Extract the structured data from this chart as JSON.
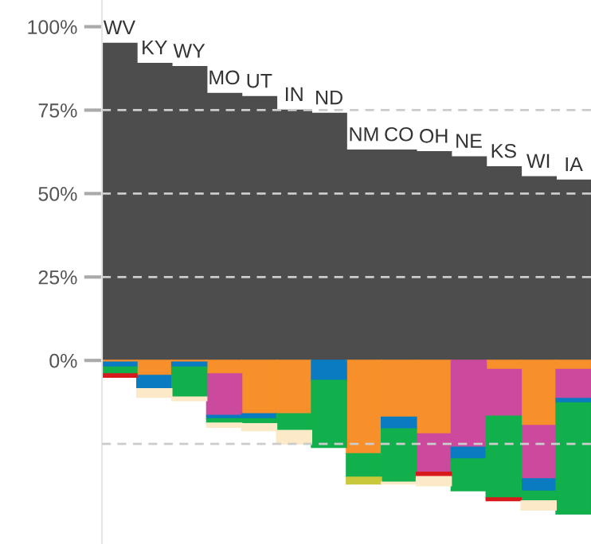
{
  "chart_data": {
    "type": "bar",
    "stacked": true,
    "categories": [
      "WV",
      "KY",
      "WY",
      "MO",
      "UT",
      "IN",
      "ND",
      "NM",
      "CO",
      "OH",
      "NE",
      "KS",
      "WI",
      "IA"
    ],
    "series": [
      {
        "color": "#4d4d4d",
        "values": [
          95,
          89,
          88,
          80,
          79,
          75,
          74,
          63,
          63,
          62.5,
          61,
          58,
          55,
          54
        ]
      },
      {
        "color": "#f78f2a",
        "values": [
          -0.5,
          -4.5,
          -0.5,
          -4,
          -16,
          -16,
          null,
          -28,
          -17,
          -22,
          null,
          -2.7,
          -19.5,
          -2.7
        ]
      },
      {
        "color": "#cc4a9e",
        "values": [
          null,
          null,
          null,
          -12.5,
          null,
          null,
          null,
          null,
          null,
          -11.5,
          -26,
          -14,
          -16,
          -8.7
        ]
      },
      {
        "color": "#0a7bc1",
        "values": [
          -1.5,
          -4,
          -1.5,
          -1,
          -1.5,
          null,
          -6,
          null,
          -3.5,
          null,
          -3.5,
          null,
          -3.7,
          -1.3
        ]
      },
      {
        "color": "#12b04c",
        "values": [
          -2,
          null,
          -9,
          -1.3,
          -1.5,
          -5,
          -20,
          -7,
          -16,
          null,
          -9.5,
          -24.5,
          -2.9,
          -33.3
        ]
      },
      {
        "color": "#d7191c",
        "values": [
          -1,
          null,
          null,
          null,
          null,
          null,
          null,
          null,
          null,
          -1.3,
          null,
          -0.8,
          null,
          null
        ]
      },
      {
        "color": "#c8c83a",
        "values": [
          null,
          null,
          null,
          null,
          null,
          null,
          null,
          -2,
          null,
          null,
          null,
          null,
          null,
          null
        ]
      },
      {
        "color": "#fbe9c8",
        "values": [
          null,
          -2.5,
          -1,
          -1.2,
          -2,
          -4,
          null,
          null,
          -0.5,
          -2.7,
          null,
          null,
          -2.7,
          null
        ]
      }
    ],
    "ylim": [
      -55,
      108
    ],
    "yticks": [
      {
        "value": -25,
        "label": null
      },
      {
        "value": 0,
        "label": "0%"
      },
      {
        "value": 25,
        "label": "25%"
      },
      {
        "value": 50,
        "label": "50%"
      },
      {
        "value": 75,
        "label": "75%"
      },
      {
        "value": 100,
        "label": "100%"
      }
    ],
    "grid": "y",
    "tick_labels": "y"
  }
}
